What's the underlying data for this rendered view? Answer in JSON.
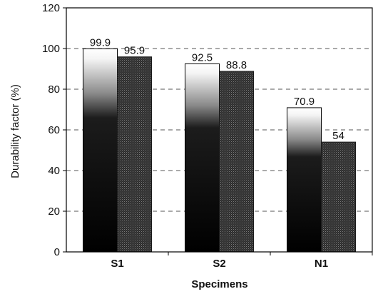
{
  "chart_data": {
    "type": "bar",
    "categories": [
      "S1",
      "S2",
      "N1"
    ],
    "series": [
      {
        "values": [
          99.9,
          92.5,
          70.9
        ]
      },
      {
        "values": [
          95.9,
          88.8,
          54
        ]
      }
    ],
    "data_labels": [
      [
        "99.9",
        "92.5",
        "70.9"
      ],
      [
        "95.9",
        "88.8",
        "54"
      ]
    ],
    "xlabel": "Specimens",
    "ylabel": "Durability factor (%)",
    "ylim": [
      0,
      120
    ],
    "yticks": [
      "0",
      "20",
      "40",
      "60",
      "80",
      "100",
      "120"
    ],
    "grid": "horizontal dashed",
    "legend": "none"
  }
}
